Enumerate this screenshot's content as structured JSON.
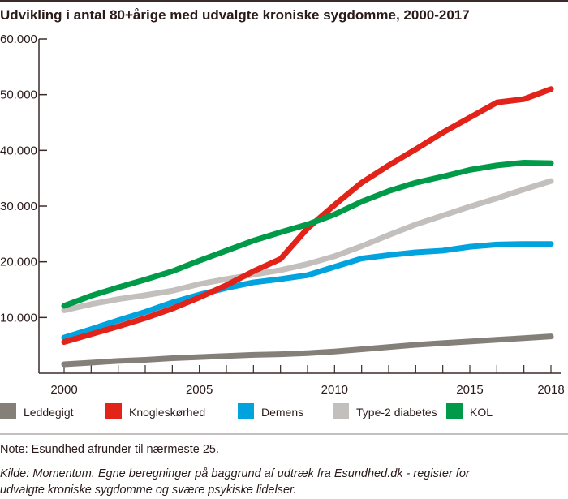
{
  "chart_data": {
    "type": "line",
    "title": "Udvikling i antal 80+årige med udvalgte kroniske sygdomme, 2000-2017",
    "xlabel": "",
    "ylabel": "",
    "xlim": [
      2000,
      2018
    ],
    "ylim": [
      0,
      60000
    ],
    "x_tick_labels": [
      "2000",
      "2005",
      "2010",
      "2015",
      "2018"
    ],
    "x_tick_values": [
      2000,
      2005,
      2010,
      2015,
      2018
    ],
    "y_tick_labels": [
      "10.000",
      "20.000",
      "30.000",
      "40.000",
      "50.000",
      "60.000"
    ],
    "y_tick_values": [
      10000,
      20000,
      30000,
      40000,
      50000,
      60000
    ],
    "grid": false,
    "legend_placement": "bottom",
    "x": [
      2000,
      2001,
      2002,
      2003,
      2004,
      2005,
      2006,
      2007,
      2008,
      2009,
      2010,
      2011,
      2012,
      2013,
      2014,
      2015,
      2016,
      2017,
      2018
    ],
    "series": [
      {
        "name": "Leddegigt",
        "color": "#857f7a",
        "values": [
          1600,
          1900,
          2200,
          2400,
          2700,
          2900,
          3100,
          3300,
          3400,
          3600,
          3900,
          4300,
          4700,
          5100,
          5400,
          5700,
          6000,
          6300,
          6600
        ]
      },
      {
        "name": "Type-2 diabetes",
        "color": "#c3bfbd",
        "values": [
          11300,
          12400,
          13300,
          14000,
          14800,
          16000,
          16900,
          17700,
          18500,
          19600,
          21000,
          22800,
          24800,
          26700,
          28300,
          29900,
          31400,
          33000,
          34500
        ]
      },
      {
        "name": "Demens",
        "color": "#00a3de",
        "values": [
          6400,
          7900,
          9500,
          11000,
          12700,
          14100,
          15300,
          16300,
          16900,
          17600,
          19100,
          20600,
          21200,
          21700,
          22000,
          22700,
          23100,
          23200,
          23200
        ]
      },
      {
        "name": "Knogleskørhed",
        "color": "#e2231a",
        "values": [
          5600,
          7000,
          8400,
          9900,
          11600,
          13600,
          15800,
          18300,
          20500,
          26000,
          30200,
          34200,
          37300,
          40200,
          43200,
          45900,
          48600,
          49200,
          51000
        ]
      },
      {
        "name": "KOL",
        "color": "#009a49",
        "values": [
          12100,
          13900,
          15400,
          16800,
          18300,
          20200,
          22000,
          23800,
          25300,
          26700,
          28500,
          30800,
          32700,
          34200,
          35300,
          36500,
          37300,
          37800,
          37700
        ]
      }
    ],
    "legend_order": [
      "Leddegigt",
      "Knogleskørhed",
      "Demens",
      "Type-2 diabetes",
      "KOL"
    ]
  },
  "note": "Note: Esundhed afrunder til nærmeste 25.",
  "source_line1": "Kilde: Momentum. Egne beregninger på baggrund af udtræk fra Esundhed.dk - register for",
  "source_line2": "udvalgte kroniske sygdomme og svære psykiske lidelser."
}
